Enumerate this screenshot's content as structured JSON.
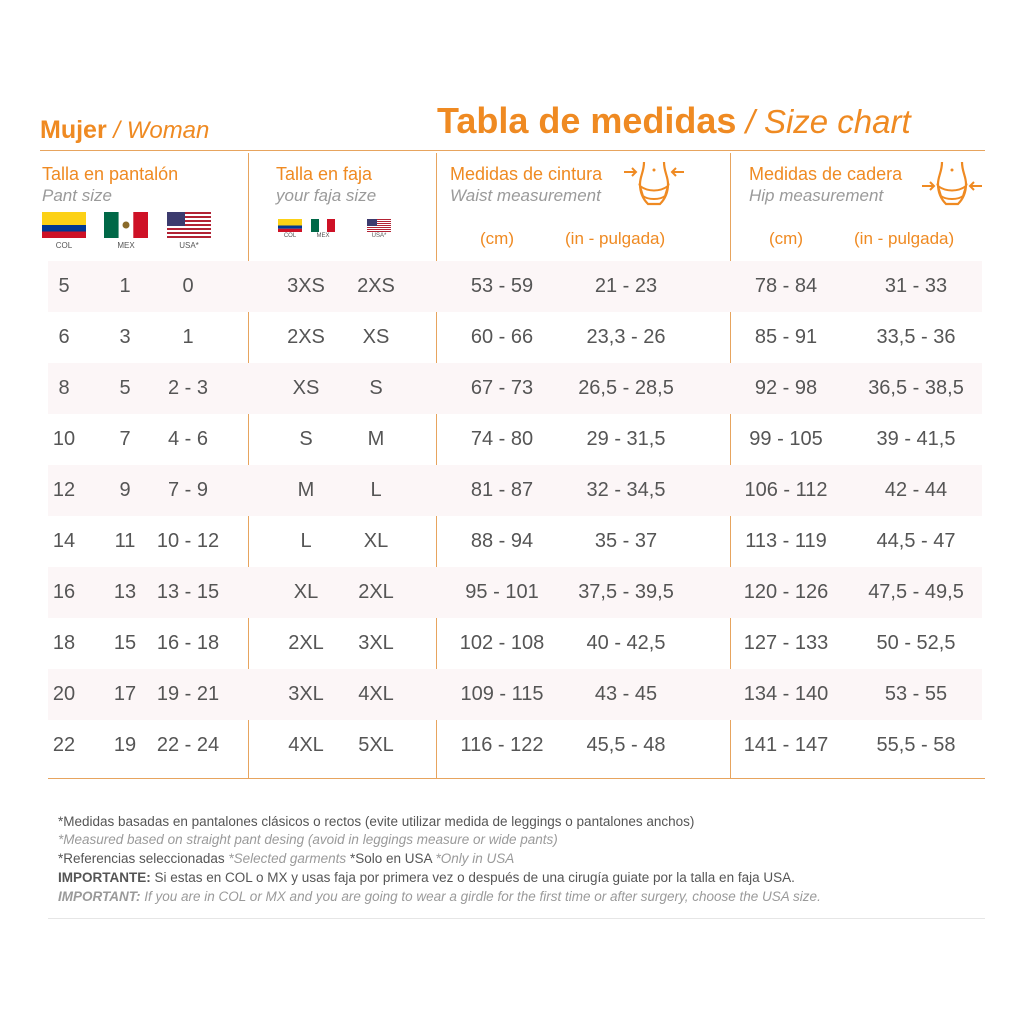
{
  "header": {
    "left_title": "Mujer",
    "left_subtitle": " / Woman",
    "main_title": "Tabla de medidas",
    "main_subtitle": " / Size chart"
  },
  "columns": {
    "pant": {
      "title": "Talla en pantalón",
      "subtitle": "Pant size",
      "flags": [
        "COL",
        "MEX",
        "USA*"
      ]
    },
    "faja": {
      "title": "Talla en faja",
      "subtitle": "your faja size",
      "flags": [
        "COL",
        "MEX",
        "USA*"
      ]
    },
    "waist": {
      "title": "Medidas de cintura",
      "subtitle": "Waist measurement",
      "unit_cm": "(cm)",
      "unit_in": "(in - pulgada)"
    },
    "hip": {
      "title": "Medidas de cadera",
      "subtitle": "Hip measurement",
      "unit_cm": "(cm)",
      "unit_in": "(in - pulgada)"
    }
  },
  "rows": [
    [
      "5",
      "1",
      "0",
      "3XS",
      "2XS",
      "53 - 59",
      "21 - 23",
      "78 - 84",
      "31 - 33"
    ],
    [
      "6",
      "3",
      "1",
      "2XS",
      "XS",
      "60 - 66",
      "23,3 - 26",
      "85 - 91",
      "33,5 - 36"
    ],
    [
      "8",
      "5",
      "2 - 3",
      "XS",
      "S",
      "67 - 73",
      "26,5 - 28,5",
      "92 - 98",
      "36,5 - 38,5"
    ],
    [
      "10",
      "7",
      "4 - 6",
      "S",
      "M",
      "74 - 80",
      "29 - 31,5",
      "99 - 105",
      "39 - 41,5"
    ],
    [
      "12",
      "9",
      "7 - 9",
      "M",
      "L",
      "81 - 87",
      "32 - 34,5",
      "106 - 112",
      "42 - 44"
    ],
    [
      "14",
      "11",
      "10 - 12",
      "L",
      "XL",
      "88 - 94",
      "35 - 37",
      "113 - 119",
      "44,5 - 47"
    ],
    [
      "16",
      "13",
      "13 - 15",
      "XL",
      "2XL",
      "95 - 101",
      "37,5 - 39,5",
      "120 - 126",
      "47,5 - 49,5"
    ],
    [
      "18",
      "15",
      "16 - 18",
      "2XL",
      "3XL",
      "102 - 108",
      "40 - 42,5",
      "127 - 133",
      "50 - 52,5"
    ],
    [
      "20",
      "17",
      "19 - 21",
      "3XL",
      "4XL",
      "109 - 115",
      "43 - 45",
      "134 - 140",
      "53 - 55"
    ],
    [
      "22",
      "19",
      "22 - 24",
      "4XL",
      "5XL",
      "116 - 122",
      "45,5 - 48",
      "141 - 147",
      "55,5 - 58"
    ]
  ],
  "footer": {
    "line1": "*Medidas basadas en pantalones clásicos o rectos (evite utilizar medida de leggings o pantalones anchos)",
    "line2": "*Measured based on straight pant desing (avoid in leggings measure or wide pants)",
    "line3a": "*Referencias seleccionadas ",
    "line3b": "*Selected garments",
    "line3c": " *Solo en USA ",
    "line3d": "*Only in USA",
    "line4_bold": "IMPORTANTE:",
    "line4_text": " Si estas en COL o MX y usas faja por primera vez o después de una cirugía guiate por la talla en faja USA.",
    "line5_bold": "IMPORTANT:",
    "line5_text": " If you are in COL or MX and you are going to wear a girdle for the first time or after surgery, choose the USA size."
  },
  "icons": {
    "waist": "waist-body-icon",
    "hip": "hip-body-icon"
  },
  "colors": {
    "accent": "#ef8a22",
    "row_band": "#fcf6f7",
    "text": "#555555"
  }
}
